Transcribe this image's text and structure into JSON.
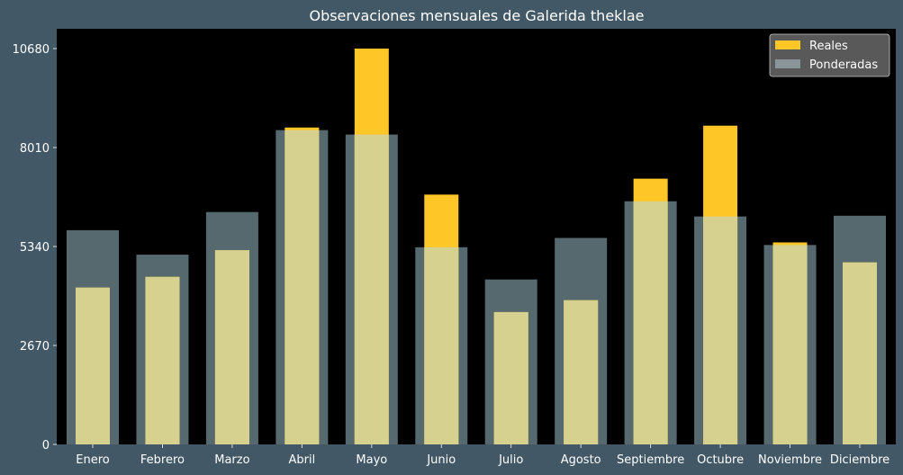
{
  "chart_data": {
    "type": "bar",
    "title": "Observaciones mensuales de Galerida theklae",
    "xlabel": "",
    "ylabel": "",
    "categories": [
      "Enero",
      "Febrero",
      "Marzo",
      "Abril",
      "Mayo",
      "Junio",
      "Julio",
      "Agosto",
      "Septiembre",
      "Octubre",
      "Noviembre",
      "Diciembre"
    ],
    "series": [
      {
        "name": "Reales",
        "color": "#ffc627",
        "values": [
          4230,
          4520,
          5240,
          8550,
          10680,
          6740,
          3570,
          3890,
          7170,
          8600,
          5450,
          4910
        ]
      },
      {
        "name": "Ponderadas",
        "color": "#a8b3b5",
        "values": [
          5780,
          5120,
          6270,
          8480,
          8360,
          5320,
          4450,
          5570,
          6560,
          6150,
          5380,
          6170
        ]
      }
    ],
    "yticks": [
      "0",
      "2670",
      "5340",
      "8010",
      "10680"
    ],
    "ylim": [
      0,
      10680
    ],
    "grid": false,
    "legend_position": "top-right",
    "colors": {
      "background": "#425866",
      "plot_area": "#000000",
      "weighted_bar_overlay": "#56696e",
      "overlap_region": "#d6d18e"
    }
  }
}
